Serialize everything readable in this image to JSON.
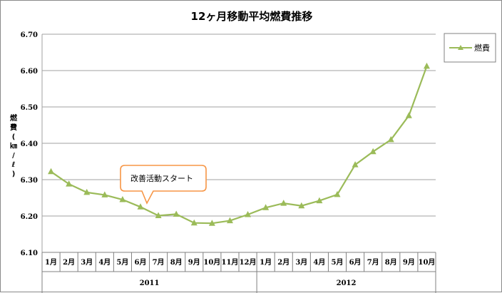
{
  "chart_data": {
    "type": "line",
    "title": "12ヶ月移動平均燃費推移",
    "ylabel": "燃費(㎞/ℓ)",
    "xlabel": "",
    "ylim": [
      6.1,
      6.7
    ],
    "ytick_step": 0.1,
    "ytick_labels": [
      "6.10",
      "6.20",
      "6.30",
      "6.40",
      "6.50",
      "6.60",
      "6.70"
    ],
    "grid": true,
    "legend_position": "top-right",
    "categories": [
      "1月",
      "2月",
      "3月",
      "4月",
      "5月",
      "6月",
      "7月",
      "8月",
      "9月",
      "10月",
      "11月",
      "12月",
      "1月",
      "2月",
      "3月",
      "4月",
      "5月",
      "6月",
      "7月",
      "8月",
      "9月",
      "10月"
    ],
    "groups": [
      {
        "label": "2011",
        "count": 12
      },
      {
        "label": "2012",
        "count": 10
      }
    ],
    "series": [
      {
        "name": "燃費",
        "color": "#9bbb59",
        "marker": "triangle",
        "values": [
          6.322,
          6.288,
          6.265,
          6.258,
          6.245,
          6.225,
          6.201,
          6.205,
          6.181,
          6.18,
          6.187,
          6.204,
          6.223,
          6.235,
          6.228,
          6.242,
          6.259,
          6.341,
          6.377,
          6.41,
          6.476,
          6.612
        ]
      }
    ],
    "annotations": [
      {
        "text": "改善活動スタート",
        "category_index": 5
      }
    ]
  }
}
